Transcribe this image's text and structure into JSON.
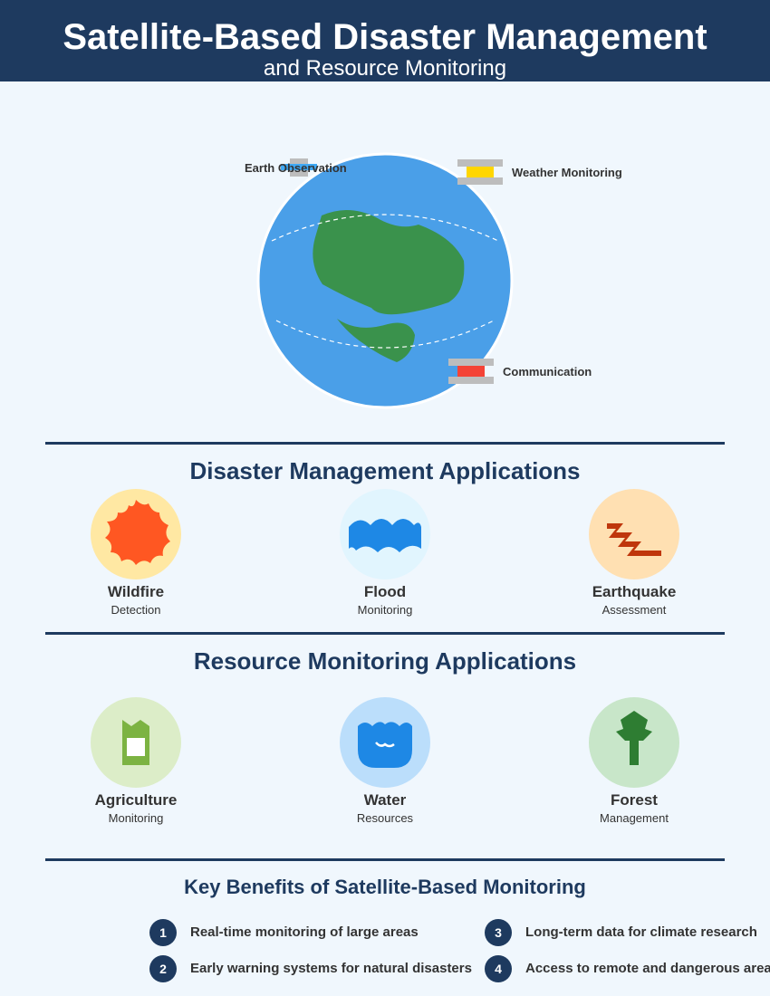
{
  "header": {
    "title": "Satellite-Based Disaster Management",
    "subtitle": "and Resource Monitoring"
  },
  "satellites": [
    {
      "label": "Earth Observation",
      "color": "#3fa9f5"
    },
    {
      "label": "Weather Monitoring",
      "color": "#ffd600"
    },
    {
      "label": "Communication",
      "color": "#f44336"
    }
  ],
  "disaster": {
    "title": "Disaster Management Applications",
    "items": [
      {
        "name": "Wildfire",
        "desc": "Detection",
        "icon": "wildfire-icon"
      },
      {
        "name": "Flood",
        "desc": "Monitoring",
        "icon": "flood-icon"
      },
      {
        "name": "Earthquake",
        "desc": "Assessment",
        "icon": "earthquake-icon"
      }
    ]
  },
  "resource": {
    "title": "Resource Monitoring Applications",
    "items": [
      {
        "name": "Agriculture",
        "desc": "Monitoring",
        "icon": "agriculture-icon"
      },
      {
        "name": "Water",
        "desc": "Resources",
        "icon": "water-icon"
      },
      {
        "name": "Forest",
        "desc": "Management",
        "icon": "forest-icon"
      }
    ]
  },
  "benefits": {
    "title": "Key Benefits of Satellite-Based Monitoring",
    "items": [
      {
        "num": "1",
        "text": "Real-time monitoring of large areas"
      },
      {
        "num": "2",
        "text": "Early warning systems for natural disasters"
      },
      {
        "num": "3",
        "text": "Long-term data for climate research"
      },
      {
        "num": "4",
        "text": "Access to remote and dangerous areas"
      }
    ]
  },
  "colors": {
    "navy": "#1e3a5f",
    "ocean": "#4a9fe8",
    "land": "#3a924c"
  }
}
